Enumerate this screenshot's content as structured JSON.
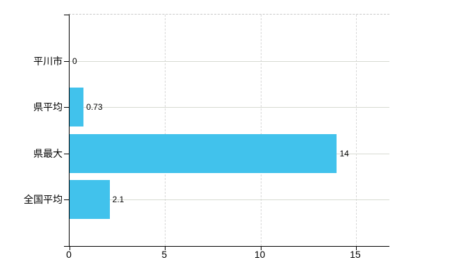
{
  "chart_data": {
    "type": "bar",
    "orientation": "horizontal",
    "title": "",
    "categories": [
      "平川市",
      "県平均",
      "県最大",
      "全国平均"
    ],
    "values": [
      0,
      0.73,
      14,
      2.1
    ],
    "value_labels": [
      "0",
      "0.73",
      "14",
      "2.1"
    ],
    "x_tick_values": [
      0,
      5,
      10,
      15
    ],
    "x_tick_labels": [
      "0",
      "5",
      "10",
      "15"
    ],
    "xlim": [
      0,
      16.75
    ],
    "grid": true,
    "legend_position": "none"
  },
  "colors": {
    "background": "#ffffff",
    "bar": "#41c2ec",
    "axis": "#000000",
    "gridline_horizontal": "#d7dad2",
    "gridline_vertical": "#d8d8d8",
    "plot_top_border": "#c8c8c8",
    "text": "#000000"
  }
}
